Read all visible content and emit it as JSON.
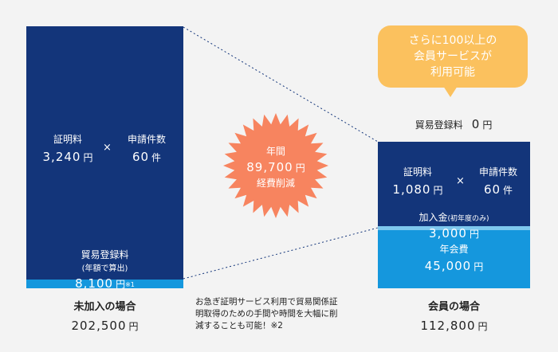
{
  "left": {
    "cert_fee_label": "証明料",
    "cert_fee_value": "3,240",
    "yen": "円",
    "times": "×",
    "app_count_label": "申請件数",
    "app_count_value": "60",
    "count_unit": "件",
    "trade_reg_label": "貿易登録料",
    "trade_reg_sub": "(年額で算出)",
    "trade_reg_value": "8,100",
    "trade_reg_note": "※1",
    "title": "未加入の場合",
    "total": "202,500"
  },
  "savings": {
    "label_top": "年間",
    "value": "89,700",
    "yen": "円",
    "label_bottom": "経費削減"
  },
  "note": {
    "line1": "お急ぎ証明サービス利用で貿易関係証",
    "line2": "明取得のための手間や時間を大幅に削",
    "line3": "減することも可能！※2"
  },
  "bubble": {
    "line1": "さらに100以上の",
    "line2": "会員サービスが",
    "line3": "利用可能"
  },
  "right": {
    "trade_reg_label": "貿易登録料",
    "trade_reg_value": "0",
    "yen": "円",
    "cert_fee_label": "証明料",
    "cert_fee_value": "1,080",
    "times": "×",
    "app_count_label": "申請件数",
    "app_count_value": "60",
    "count_unit": "件",
    "join_fee_label": "加入金",
    "join_fee_sub": "(初年度のみ)",
    "join_fee_value": "3,000",
    "annual_fee_label": "年会費",
    "annual_fee_value": "45,000",
    "title": "会員の場合",
    "total": "112,800"
  },
  "colors": {
    "navy": "#13357a",
    "blue": "#1597dd",
    "orange": "#f7845f",
    "yellow": "#fbc15e",
    "background": "#f3f3f3"
  }
}
